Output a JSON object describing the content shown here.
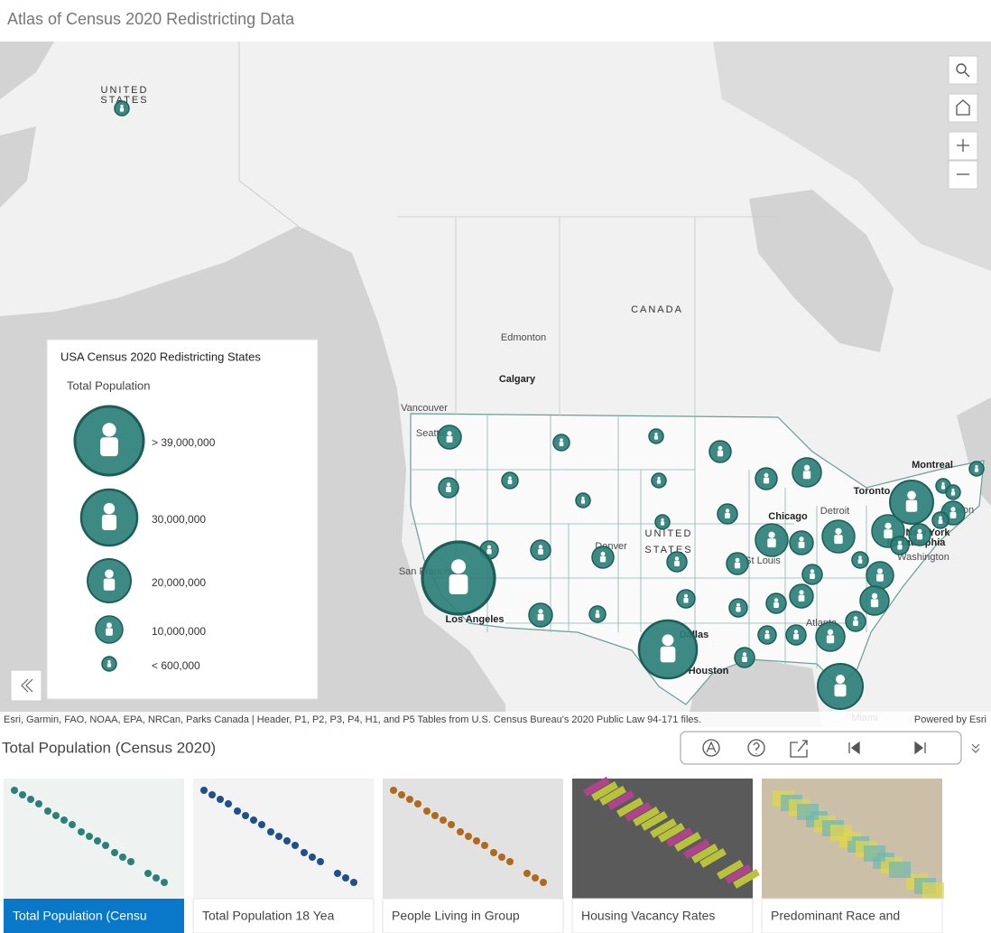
{
  "header": {
    "title": "Atlas of Census 2020 Redistricting Data"
  },
  "map": {
    "labels": {
      "us_top_1": "UNITED",
      "us_top_2": "STATES",
      "canada": "CANADA",
      "edmonton": "Edmonton",
      "calgary": "Calgary",
      "vancouver": "Vancouver",
      "seattle": "Seattle",
      "san_francisco": "San Francisco",
      "los_angeles": "Los Angeles",
      "denver": "Denver",
      "us_1": "UNITED",
      "us_2": "STATES",
      "dallas": "Dallas",
      "houston": "Houston",
      "chicago": "Chicago",
      "st_louis": "St Louis",
      "detroit": "Detroit",
      "toronto": "Toronto",
      "montreal": "Montreal",
      "new_york": "New York",
      "philadelphia": "Philadelphia",
      "washington": "Washington",
      "boston": "Boston",
      "atlanta": "Atlanta",
      "miami": "Miami"
    },
    "attribution": "Esri, Garmin, FAO, NOAA, EPA, NRCan, Parks Canada | Header, P1, P2, P3, P4, H1, and P5 Tables from U.S. Census Bureau's 2020 Public Law 94-171 files.",
    "powered_by": "Powered by Esri"
  },
  "legend": {
    "title": "USA Census 2020 Redistricting States",
    "subtitle": "Total Population",
    "items": [
      "> 39,000,000",
      "30,000,000",
      "20,000,000",
      "10,000,000",
      "< 600,000"
    ]
  },
  "panel": {
    "title": "Total Population (Census 2020)"
  },
  "cards": [
    "Total Population (Censu",
    "Total Population 18 Yea",
    "People Living in Group",
    "Housing Vacancy Rates",
    "Predominant Race and"
  ]
}
